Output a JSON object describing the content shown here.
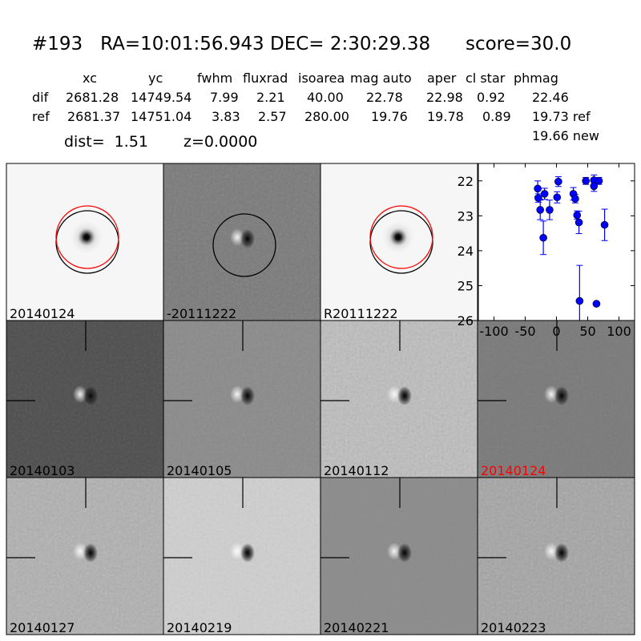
{
  "header": {
    "title": "#193   RA=10:01:56.943 DEC= 2:30:29.38      score=30.0"
  },
  "table": {
    "columns": [
      "xc",
      "yc",
      "fwhm",
      "fluxrad",
      "isoarea",
      "mag auto",
      "aper",
      "cl star",
      "phmag"
    ],
    "rows": [
      {
        "label": "dif",
        "values": [
          "2681.28",
          "14749.54",
          "7.99",
          "2.21",
          "40.00",
          "22.78",
          "22.98",
          "0.92",
          "22.46"
        ]
      },
      {
        "label": "ref",
        "values": [
          "2681.37",
          "14751.04",
          "3.83",
          "2.57",
          "280.00",
          "19.76",
          "19.78",
          "0.89",
          "19.73 ref"
        ]
      }
    ],
    "new_mag": "19.66 new",
    "dist": "dist=  1.51",
    "z": "z=0.0000"
  },
  "stamps": {
    "top": [
      {
        "label": "20140124",
        "type": "new"
      },
      {
        "label": "-20111222",
        "type": "diff"
      },
      {
        "label": "R20111222",
        "type": "ref"
      }
    ],
    "grid": [
      {
        "label": "20140103",
        "highlight": false
      },
      {
        "label": "20140105",
        "highlight": false
      },
      {
        "label": "20140112",
        "highlight": false
      },
      {
        "label": "20140124",
        "highlight": true
      },
      {
        "label": "20140127",
        "highlight": false
      },
      {
        "label": "20140219",
        "highlight": false
      },
      {
        "label": "20140221",
        "highlight": false
      },
      {
        "label": "20140223",
        "highlight": false
      }
    ],
    "highlight_color": "#ff0000"
  },
  "chart_data": {
    "type": "scatter",
    "title": "",
    "xlabel": "",
    "ylabel": "",
    "xlim": [
      -125,
      125
    ],
    "ylim": [
      26,
      21.5
    ],
    "y_inverted": true,
    "xticks": [
      -100,
      -50,
      0,
      50,
      100
    ],
    "yticks": [
      22,
      23,
      24,
      25,
      26
    ],
    "color": "#0000ff",
    "points": [
      {
        "x": -30,
        "y": 22.22,
        "err": 0.22
      },
      {
        "x": -29,
        "y": 22.49,
        "err": 0.12
      },
      {
        "x": -26,
        "y": 22.83,
        "err": 0.28
      },
      {
        "x": -19,
        "y": 22.37,
        "err": 0.16
      },
      {
        "x": -21,
        "y": 23.63,
        "err": 0.48
      },
      {
        "x": -11,
        "y": 22.83,
        "err": 0.28
      },
      {
        "x": 1,
        "y": 22.47,
        "err": 0.16
      },
      {
        "x": 3,
        "y": 22.02,
        "err": 0.14
      },
      {
        "x": 27,
        "y": 22.37,
        "err": 0.18
      },
      {
        "x": 30,
        "y": 22.51,
        "err": 0.12
      },
      {
        "x": 33,
        "y": 22.98,
        "err": 0.12
      },
      {
        "x": 36,
        "y": 23.19,
        "err": 0.32
      },
      {
        "x": 37,
        "y": 25.44,
        "err": 1.02
      },
      {
        "x": 47,
        "y": 22.0,
        "err": 0.1
      },
      {
        "x": 60,
        "y": 21.98,
        "err": 0.15
      },
      {
        "x": 60,
        "y": 22.15,
        "err": 0.15
      },
      {
        "x": 68,
        "y": 22.0,
        "err": 0.1
      },
      {
        "x": 64,
        "y": 25.52,
        "err": 0.05
      },
      {
        "x": 77,
        "y": 23.26,
        "err": 0.45
      }
    ]
  }
}
